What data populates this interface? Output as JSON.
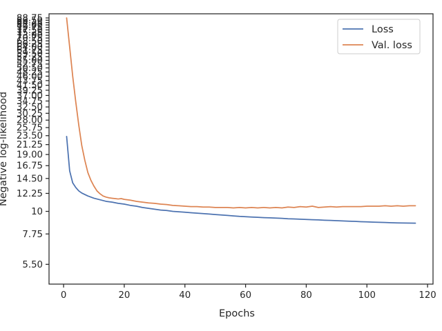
{
  "chart_data": {
    "type": "line",
    "xlabel": "Epochs",
    "ylabel": "Negative log-likelihood",
    "yscale": "log",
    "xlim": [
      -4.8,
      121.8
    ],
    "ylim": [
      4.4,
      93.0
    ],
    "x_ticks": [
      0,
      20,
      40,
      60,
      80,
      100,
      120
    ],
    "y_ticks": [
      5.5,
      7.75,
      10,
      12.25,
      14.5,
      16.75,
      19,
      21.25,
      23.5,
      25.75,
      28,
      30.25,
      32.5,
      34.75,
      37,
      39.25,
      41.5,
      43.75,
      46,
      48.25,
      50.5,
      52.75,
      55,
      57.25,
      59.5,
      61.75,
      64,
      66.25,
      68.5,
      70.75,
      73,
      75.25,
      77.5,
      79.75,
      82,
      84.25,
      86.5,
      88.75
    ],
    "y_tick_labels": [
      "5.50",
      "7.75",
      "10",
      "12.25",
      "14.50",
      "16.75",
      "19.00",
      "21.25",
      "23.50",
      "25.75",
      "28.00",
      "30.25",
      "32.50",
      "34.75",
      "37.00",
      "39.25",
      "41.50",
      "43.75",
      "46.00",
      "48.25",
      "50.50",
      "52.75",
      "55.00",
      "57.25",
      "59.50",
      "61.75",
      "64.00",
      "66.25",
      "68.50",
      "70.75",
      "73.00",
      "75.25",
      "77.50",
      "79.75",
      "82.00",
      "84.25",
      "86.50",
      "88.75"
    ],
    "legend_position": "top-right",
    "grid": false,
    "series": [
      {
        "name": "Loss",
        "color": "#4c72b0",
        "x": [
          1,
          2,
          3,
          4,
          5,
          6,
          7,
          8,
          9,
          10,
          12,
          14,
          16,
          18,
          20,
          22,
          24,
          26,
          28,
          30,
          32,
          34,
          36,
          38,
          40,
          42,
          44,
          46,
          48,
          50,
          52,
          54,
          56,
          58,
          60,
          62,
          64,
          66,
          68,
          70,
          72,
          74,
          76,
          78,
          80,
          82,
          84,
          86,
          88,
          90,
          92,
          94,
          96,
          98,
          100,
          102,
          104,
          106,
          108,
          110,
          112,
          114,
          116
        ],
        "y": [
          23.3,
          15.8,
          13.8,
          13.1,
          12.6,
          12.3,
          12.1,
          11.9,
          11.75,
          11.6,
          11.4,
          11.2,
          11.1,
          10.95,
          10.85,
          10.7,
          10.6,
          10.45,
          10.35,
          10.25,
          10.15,
          10.1,
          10.0,
          9.95,
          9.9,
          9.85,
          9.8,
          9.75,
          9.7,
          9.65,
          9.6,
          9.55,
          9.5,
          9.45,
          9.42,
          9.38,
          9.35,
          9.32,
          9.3,
          9.27,
          9.24,
          9.2,
          9.18,
          9.15,
          9.13,
          9.1,
          9.08,
          9.05,
          9.03,
          9.0,
          8.98,
          8.95,
          8.93,
          8.9,
          8.88,
          8.86,
          8.84,
          8.82,
          8.8,
          8.78,
          8.77,
          8.76,
          8.75
        ]
      },
      {
        "name": "Val. loss",
        "color": "#dd8452",
        "x": [
          1,
          2,
          3,
          4,
          5,
          6,
          7,
          8,
          9,
          10,
          11,
          12,
          13,
          14,
          15,
          16,
          17,
          18,
          19,
          20,
          22,
          24,
          26,
          28,
          30,
          32,
          34,
          36,
          38,
          40,
          42,
          44,
          46,
          48,
          50,
          52,
          54,
          56,
          58,
          60,
          62,
          64,
          66,
          68,
          70,
          72,
          74,
          76,
          78,
          80,
          82,
          84,
          86,
          88,
          90,
          92,
          94,
          96,
          98,
          100,
          102,
          104,
          106,
          108,
          110,
          112,
          114,
          116
        ],
        "y": [
          88.75,
          64.0,
          46.0,
          34.5,
          26.5,
          21.0,
          17.8,
          15.5,
          14.2,
          13.3,
          12.6,
          12.2,
          11.9,
          11.75,
          11.65,
          11.6,
          11.55,
          11.5,
          11.55,
          11.45,
          11.35,
          11.2,
          11.1,
          11.0,
          10.95,
          10.85,
          10.8,
          10.7,
          10.65,
          10.6,
          10.55,
          10.55,
          10.5,
          10.5,
          10.45,
          10.45,
          10.45,
          10.4,
          10.45,
          10.4,
          10.45,
          10.4,
          10.45,
          10.4,
          10.45,
          10.4,
          10.5,
          10.45,
          10.55,
          10.5,
          10.6,
          10.45,
          10.5,
          10.55,
          10.5,
          10.55,
          10.55,
          10.55,
          10.55,
          10.6,
          10.6,
          10.6,
          10.65,
          10.6,
          10.65,
          10.6,
          10.65,
          10.65
        ]
      }
    ]
  }
}
